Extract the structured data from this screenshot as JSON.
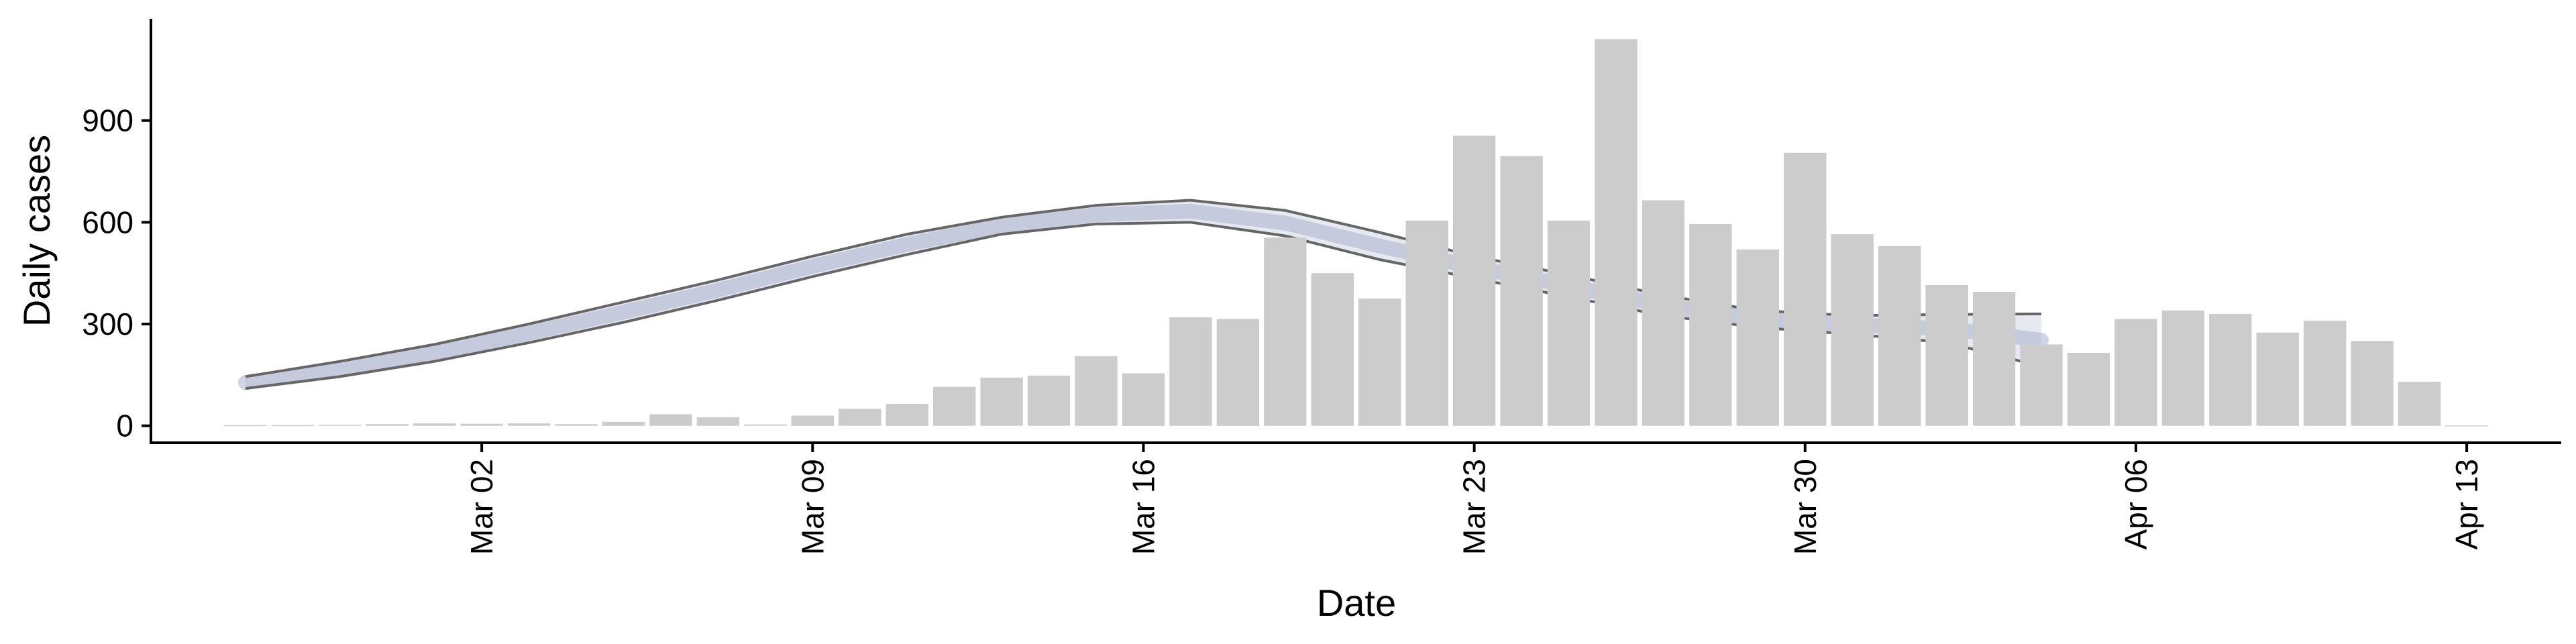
{
  "chart_data": {
    "type": "bar",
    "title": "",
    "xlabel": "Date",
    "ylabel": "Daily cases",
    "x_ticks": [
      "Mar 02",
      "Mar 09",
      "Mar 16",
      "Mar 23",
      "Mar 30",
      "Apr 06",
      "Apr 13"
    ],
    "y_ticks": [
      0,
      300,
      600,
      900
    ],
    "ylim": [
      -50,
      1200
    ],
    "xlim": [
      "2020-02-24",
      "2020-04-15"
    ],
    "grid": false,
    "legend": "none",
    "bars": {
      "color": "#cccccc",
      "dates": [
        "2020-02-26",
        "2020-02-27",
        "2020-02-28",
        "2020-02-29",
        "2020-03-01",
        "2020-03-02",
        "2020-03-03",
        "2020-03-04",
        "2020-03-05",
        "2020-03-06",
        "2020-03-07",
        "2020-03-08",
        "2020-03-09",
        "2020-03-10",
        "2020-03-11",
        "2020-03-12",
        "2020-03-13",
        "2020-03-14",
        "2020-03-15",
        "2020-03-16",
        "2020-03-17",
        "2020-03-18",
        "2020-03-19",
        "2020-03-20",
        "2020-03-21",
        "2020-03-22",
        "2020-03-23",
        "2020-03-24",
        "2020-03-25",
        "2020-03-26",
        "2020-03-27",
        "2020-03-28",
        "2020-03-29",
        "2020-03-30",
        "2020-03-31",
        "2020-04-01",
        "2020-04-02",
        "2020-04-03",
        "2020-04-04",
        "2020-04-05",
        "2020-04-06",
        "2020-04-07",
        "2020-04-08",
        "2020-04-09",
        "2020-04-10",
        "2020-04-11",
        "2020-04-12",
        "2020-04-13"
      ],
      "values": [
        2,
        2,
        3,
        5,
        7,
        6,
        7,
        5,
        12,
        34,
        25,
        4,
        30,
        50,
        65,
        115,
        142,
        148,
        205,
        155,
        320,
        315,
        555,
        450,
        375,
        605,
        855,
        795,
        605,
        1140,
        665,
        595,
        520,
        805,
        565,
        530,
        415,
        395,
        240,
        215,
        315,
        340,
        330,
        275,
        310,
        250,
        130,
        1
      ]
    },
    "band": {
      "fill": "#b8bfd4",
      "dates": [
        "2020-02-26",
        "2020-02-28",
        "2020-03-01",
        "2020-03-03",
        "2020-03-05",
        "2020-03-07",
        "2020-03-09",
        "2020-03-11",
        "2020-03-13",
        "2020-03-15",
        "2020-03-17",
        "2020-03-19",
        "2020-03-21",
        "2020-03-23",
        "2020-03-25",
        "2020-03-27",
        "2020-03-29",
        "2020-03-31",
        "2020-04-02",
        "2020-04-04"
      ],
      "upper": [
        145,
        190,
        240,
        300,
        365,
        430,
        500,
        565,
        615,
        650,
        665,
        635,
        570,
        500,
        445,
        385,
        340,
        325,
        328,
        330
      ],
      "lower": [
        110,
        145,
        190,
        245,
        305,
        370,
        440,
        505,
        565,
        595,
        600,
        560,
        490,
        435,
        380,
        325,
        290,
        270,
        245,
        175
      ]
    }
  }
}
